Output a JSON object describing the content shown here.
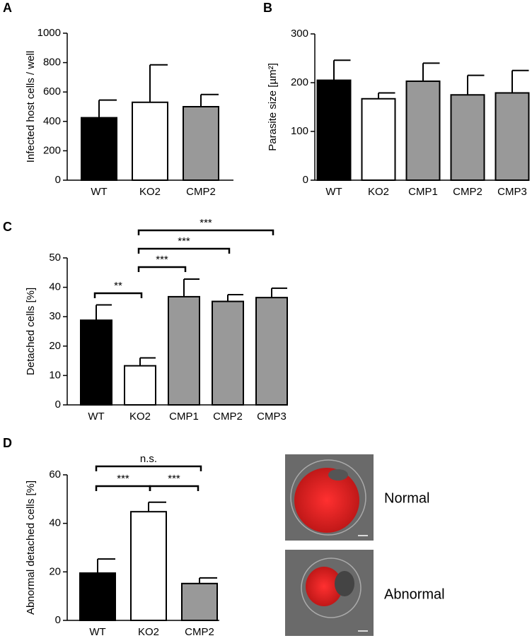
{
  "chart_data": [
    {
      "type": "bar",
      "label": "A",
      "ylabel": "Infected host cells / well",
      "categories": [
        "WT",
        "KO2",
        "CMP2"
      ],
      "values": [
        425,
        530,
        500
      ],
      "errors": [
        120,
        255,
        83
      ],
      "colors": [
        "#000000",
        "#ffffff",
        "#999999"
      ],
      "ylim": [
        0,
        1000
      ],
      "yticks": [
        0,
        200,
        400,
        600,
        800,
        1000
      ]
    },
    {
      "type": "bar",
      "label": "B",
      "ylabel": "Parasite size [µm²]",
      "categories": [
        "WT",
        "KO2",
        "CMP1",
        "CMP2",
        "CMP3"
      ],
      "values": [
        205,
        167,
        203,
        175,
        179
      ],
      "errors": [
        41,
        12,
        37,
        40,
        46
      ],
      "colors": [
        "#000000",
        "#ffffff",
        "#999999",
        "#999999",
        "#999999"
      ],
      "ylim": [
        0,
        300
      ],
      "yticks": [
        0,
        100,
        200,
        300
      ]
    },
    {
      "type": "bar",
      "label": "C",
      "ylabel": "Detached cells [%]",
      "categories": [
        "WT",
        "KO2",
        "CMP1",
        "CMP2",
        "CMP3"
      ],
      "values": [
        28.8,
        13.3,
        36.8,
        35.2,
        36.5
      ],
      "errors": [
        5.2,
        2.7,
        6,
        2.3,
        3.2
      ],
      "colors": [
        "#000000",
        "#ffffff",
        "#999999",
        "#999999",
        "#999999"
      ],
      "ylim": [
        0,
        50
      ],
      "yticks": [
        0,
        10,
        20,
        30,
        40,
        50
      ],
      "brackets": [
        {
          "from": 0,
          "to": 1,
          "label": "**"
        },
        {
          "from": 1,
          "to": 2,
          "label": "***"
        },
        {
          "from": 1,
          "to": 3,
          "label": "***"
        },
        {
          "from": 1,
          "to": 4,
          "label": "***"
        }
      ]
    },
    {
      "type": "bar",
      "label": "D",
      "ylabel": "Abnormal detached cells [%]",
      "categories": [
        "WT",
        "KO2",
        "CMP2"
      ],
      "values": [
        19.5,
        44.8,
        15.2
      ],
      "errors": [
        5.8,
        3.9,
        2.3
      ],
      "colors": [
        "#000000",
        "#ffffff",
        "#999999"
      ],
      "ylim": [
        0,
        60
      ],
      "yticks": [
        0,
        20,
        40,
        60
      ],
      "brackets": [
        {
          "from": 0,
          "to": 1,
          "label": "***"
        },
        {
          "from": 1,
          "to": 2,
          "label": "***"
        },
        {
          "from": 0,
          "to": 2,
          "label": "n.s."
        }
      ]
    }
  ],
  "images": [
    {
      "label": "Normal"
    },
    {
      "label": "Abnormal"
    }
  ]
}
